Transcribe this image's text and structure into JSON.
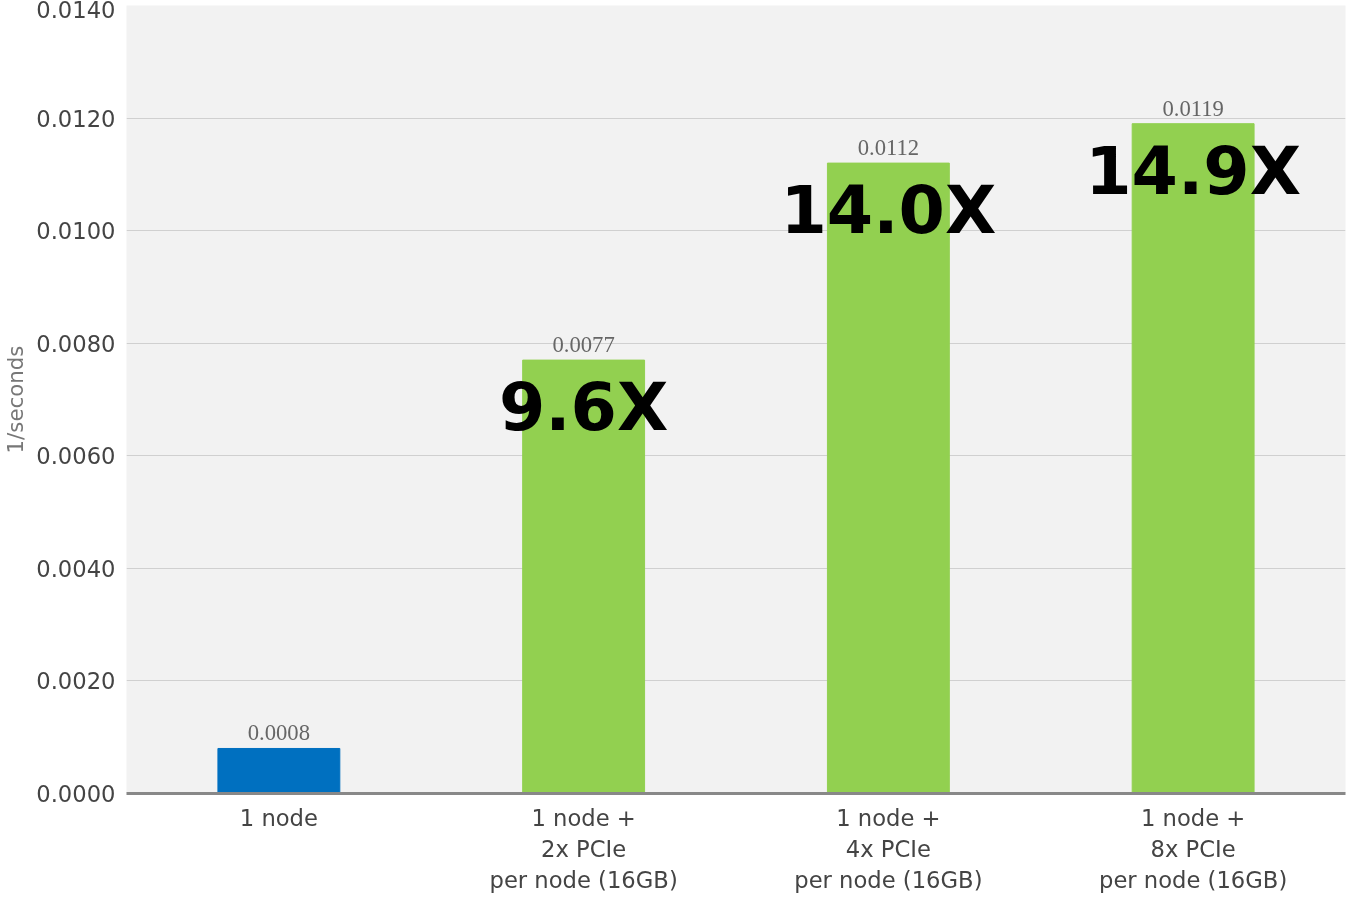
{
  "chart_data": {
    "type": "bar",
    "ylabel": "1/seconds",
    "categories": [
      "1 node",
      "1 node +\n2x PCIe\nper node (16GB)",
      "1 node +\n4x PCIe\nper node (16GB)",
      "1 node +\n8x PCIe\nper node (16GB)"
    ],
    "values": [
      0.0008,
      0.0077,
      0.0112,
      0.0119
    ],
    "colors": [
      "#0070c0",
      "#92d050",
      "#92d050",
      "#92d050"
    ],
    "value_labels": [
      "0.0008",
      "0.0077",
      "0.0112",
      "0.0119"
    ],
    "annotations": [
      "9.6X",
      "14.0X",
      "14.9X"
    ],
    "ylim": [
      0,
      0.014
    ],
    "yticks": [
      {
        "value": 0,
        "label": "0.0000"
      },
      {
        "value": 0.002,
        "label": "0.0020"
      },
      {
        "value": 0.004,
        "label": "0.0040"
      },
      {
        "value": 0.006,
        "label": "0.0060"
      },
      {
        "value": 0.008,
        "label": "0.0080"
      },
      {
        "value": 0.01,
        "label": "0.0100"
      },
      {
        "value": 0.012,
        "label": "0.0120"
      },
      {
        "value": 0.014,
        "label": "0.0140"
      }
    ],
    "grid": "y"
  }
}
